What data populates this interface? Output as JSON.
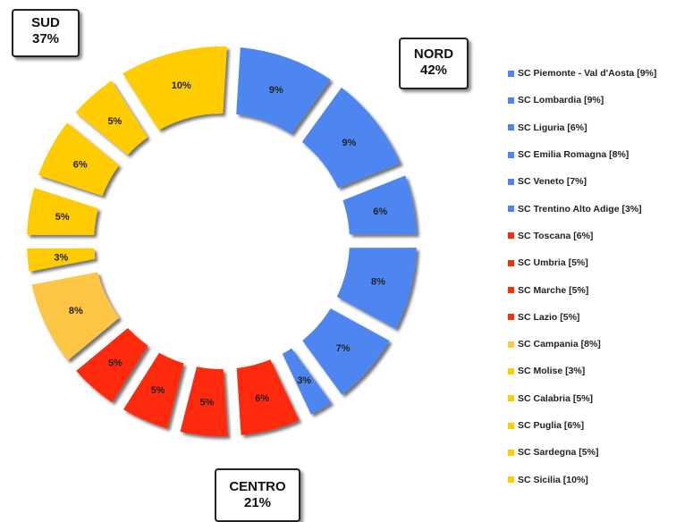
{
  "chart_data": {
    "type": "pie",
    "style": "donut, exploded slices",
    "legend_position": "right",
    "colors": {
      "nord": "#4D86F0",
      "centro": "#FF2A0A",
      "campania": "#FFC545",
      "sud": "#FFCC00"
    },
    "slices": [
      {
        "legend_label": "SC Piemonte - Val d'Aosta [9%]",
        "value": 9,
        "label": "9%",
        "group": "nord",
        "color": "#4D86F0"
      },
      {
        "legend_label": "SC Lombardia [9%]",
        "value": 9,
        "label": "9%",
        "group": "nord",
        "color": "#4D86F0"
      },
      {
        "legend_label": "SC Liguria [6%]",
        "value": 6,
        "label": "6%",
        "group": "nord",
        "color": "#4D86F0"
      },
      {
        "legend_label": "SC Emilia Romagna [8%]",
        "value": 8,
        "label": "8%",
        "group": "nord",
        "color": "#4D86F0"
      },
      {
        "legend_label": "SC Veneto [7%]",
        "value": 7,
        "label": "7%",
        "group": "nord",
        "color": "#4D86F0"
      },
      {
        "legend_label": "SC Trentino Alto Adige [3%]",
        "value": 3,
        "label": "3%",
        "group": "nord",
        "color": "#4D86F0"
      },
      {
        "legend_label": "SC Toscana [6%]",
        "value": 6,
        "label": "6%",
        "group": "centro",
        "color": "#FF2A0A"
      },
      {
        "legend_label": "SC Umbria [5%]",
        "value": 5,
        "label": "5%",
        "group": "centro",
        "color": "#FF2A0A"
      },
      {
        "legend_label": "SC Marche [5%]",
        "value": 5,
        "label": "5%",
        "group": "centro",
        "color": "#FF2A0A"
      },
      {
        "legend_label": "SC Lazio [5%]",
        "value": 5,
        "label": "5%",
        "group": "centro",
        "color": "#FF2A0A"
      },
      {
        "legend_label": "SC Campania [8%]",
        "value": 8,
        "label": "8%",
        "group": "sud",
        "color": "#FFC545"
      },
      {
        "legend_label": "SC Molise [3%]",
        "value": 3,
        "label": "3%",
        "group": "sud",
        "color": "#FFCC00"
      },
      {
        "legend_label": "SC Calabria [5%]",
        "value": 5,
        "label": "5%",
        "group": "sud",
        "color": "#FFCC00"
      },
      {
        "legend_label": "SC Puglia [6%]",
        "value": 6,
        "label": "6%",
        "group": "sud",
        "color": "#FFCC00"
      },
      {
        "legend_label": "SC Sardegna [5%]",
        "value": 5,
        "label": "5%",
        "group": "sud",
        "color": "#FFCC00"
      },
      {
        "legend_label": "SC Sicilia [10%]",
        "value": 10,
        "label": "10%",
        "group": "sud",
        "color": "#FFCC00"
      }
    ],
    "groups": {
      "sud": {
        "name": "SUD",
        "total": "37%"
      },
      "nord": {
        "name": "NORD",
        "total": "42%"
      },
      "centro": {
        "name": "CENTRO",
        "total": "21%"
      }
    }
  }
}
